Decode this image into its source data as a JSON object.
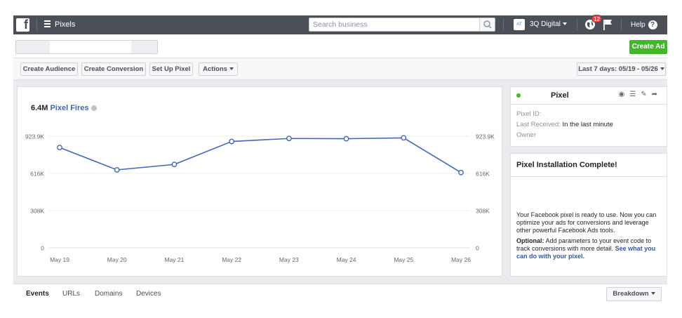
{
  "topbar": {
    "app_title": "Pixels",
    "search_placeholder": "Search business",
    "account_badge": "AT",
    "account_name": "3Q Digital",
    "notification_count": "12",
    "help_label": "Help"
  },
  "create_ad_label": "Create Ad",
  "toolbar": {
    "create_audience": "Create Audience",
    "create_conversion": "Create Conversion",
    "set_up_pixel": "Set Up Pixel",
    "actions": "Actions",
    "date_range": "Last 7 days: 05/19 - 05/26"
  },
  "summary": {
    "total": "6.4M",
    "label": "Pixel Fires"
  },
  "chart_data": {
    "type": "line",
    "categories": [
      "May 19",
      "May 20",
      "May 21",
      "May 22",
      "May 23",
      "May 24",
      "May 25",
      "May 26"
    ],
    "series": [
      {
        "name": "Pixel Fires",
        "values": [
          830000,
          645000,
          690000,
          880000,
          905000,
          903000,
          910000,
          623000
        ]
      }
    ],
    "yticks": [
      "0",
      "308K",
      "616K",
      "923.9K"
    ],
    "ytick_values": [
      0,
      308000,
      616000,
      923900
    ],
    "ylim": [
      0,
      923900
    ],
    "color": "#4267b2",
    "grid": true
  },
  "pixel_card": {
    "name": "Pixel",
    "id_label": "Pixel ID:",
    "received_label": "Last Received:",
    "received_value": "In the last minute",
    "owner_label": "Owner",
    "status_color": "#42b72a"
  },
  "install_card": {
    "title": "Pixel Installation Complete!",
    "body": "Your Facebook pixel is ready to use. Now you can optimize your ads for conversions and leverage other powerful Facebook Ads tools.",
    "optional_label": "Optional:",
    "optional_text": "Add parameters to your event code to track conversions with more detail.",
    "link_text": "See what you can do with your pixel."
  },
  "tabs": [
    "Events",
    "URLs",
    "Domains",
    "Devices"
  ],
  "breakdown_label": "Breakdown"
}
